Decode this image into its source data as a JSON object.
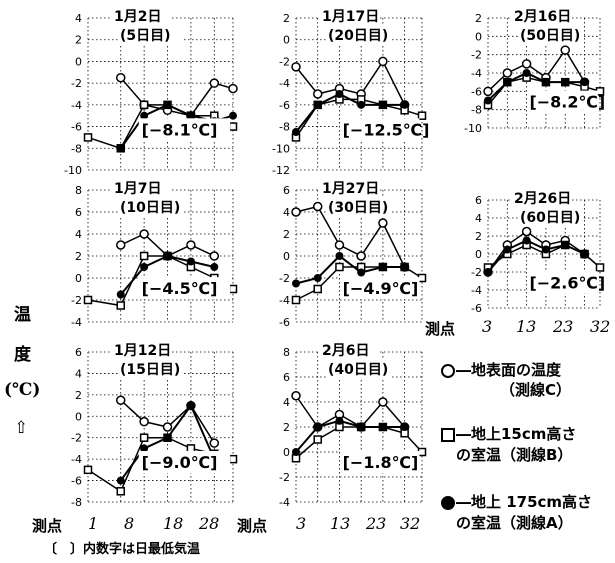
{
  "figure": {
    "y_axis_label_chars": [
      "温",
      "度",
      "(℃)",
      "⇧"
    ],
    "x_axis_label": "測点",
    "x_ticks": [
      "1",
      "8",
      "18",
      "28"
    ],
    "x_ticks_right": [
      "3",
      "13",
      "23",
      "32"
    ],
    "footnote": "〔　〕内数字は日最低気温"
  },
  "legend": {
    "items": [
      {
        "symbol": "open-circle",
        "line1": "―地表面の温度",
        "line2": "（測線C）"
      },
      {
        "symbol": "open-square",
        "line1": "―地上15cm高さ",
        "line2": "の室温（測線B）"
      },
      {
        "symbol": "filled-circle",
        "line1": "―地上 175cm高さ",
        "line2": "の室温（測線A）"
      }
    ]
  },
  "chart_data": [
    {
      "type": "line",
      "title": "1月2日",
      "subtitle": "(5日目)",
      "min_temp_label": "[−8.1℃]",
      "x": [
        1,
        8,
        13,
        18,
        23,
        28,
        32
      ],
      "ylim": [
        -10,
        4
      ],
      "yticks": [
        4,
        2,
        0,
        -2,
        -4,
        -6,
        -8,
        -10
      ],
      "series": [
        {
          "name": "地表面の温度（測線C）",
          "values": [
            null,
            -1.5,
            -4,
            -4.5,
            -5,
            -2,
            -2.5
          ]
        },
        {
          "name": "地上15cm高さの室温（測線B）",
          "values": [
            -7,
            -8,
            -4,
            -4,
            -5,
            -5,
            -6
          ]
        },
        {
          "name": "地上175cm高さの室温（測線A）",
          "values": [
            null,
            -8,
            -5,
            -4,
            -5,
            -5.5,
            -5
          ]
        }
      ]
    },
    {
      "type": "line",
      "title": "1月17日",
      "subtitle": "(20日目)",
      "min_temp_label": "[−12.5℃]",
      "x": [
        3,
        8,
        13,
        18,
        23,
        28,
        32
      ],
      "ylim": [
        -12,
        2
      ],
      "yticks": [
        2,
        0,
        -2,
        -4,
        -6,
        -8,
        -10,
        -12
      ],
      "series": [
        {
          "name": "地表面の温度（測線C）",
          "values": [
            -2.5,
            -5,
            -4.5,
            -5,
            -2,
            -6,
            null
          ]
        },
        {
          "name": "地上15cm高さの室温（測線B）",
          "values": [
            -9,
            -6,
            -5.5,
            -5.5,
            -6,
            -6.5,
            -7
          ]
        },
        {
          "name": "地上175cm高さの室温（測線A）",
          "values": [
            -8.5,
            -6,
            -5,
            -6,
            -6,
            -6,
            null
          ]
        }
      ]
    },
    {
      "type": "line",
      "title": "2月16日",
      "subtitle": "(50日目)",
      "min_temp_label": "[−8.2℃]",
      "x": [
        3,
        8,
        13,
        18,
        23,
        28,
        32
      ],
      "ylim": [
        -10,
        2
      ],
      "yticks": [
        2,
        0,
        -2,
        -4,
        -6,
        -8,
        -10
      ],
      "series": [
        {
          "name": "地表面の温度（測線C）",
          "values": [
            -6,
            -4,
            -3,
            -4.5,
            -1.5,
            -5,
            null
          ]
        },
        {
          "name": "地上15cm高さの室温（測線B）",
          "values": [
            -7.5,
            -5,
            -4.5,
            -5,
            -5,
            -5.5,
            -6
          ]
        },
        {
          "name": "地上175cm高さの室温（測線A）",
          "values": [
            -7,
            -5,
            -4,
            -5,
            -5,
            -5,
            null
          ]
        }
      ]
    },
    {
      "type": "line",
      "title": "1月7日",
      "subtitle": "(10日目)",
      "min_temp_label": "[−4.5℃]",
      "x": [
        1,
        8,
        13,
        18,
        23,
        28,
        32
      ],
      "ylim": [
        -4,
        8
      ],
      "yticks": [
        8,
        6,
        4,
        2,
        0,
        -2,
        -4
      ],
      "series": [
        {
          "name": "地表面の温度（測線C）",
          "values": [
            null,
            3,
            4,
            2,
            3,
            2,
            null
          ]
        },
        {
          "name": "地上15cm高さの室温（測線B）",
          "values": [
            -2,
            -2.5,
            2,
            2,
            1,
            0,
            -1
          ]
        },
        {
          "name": "地上175cm高さの室温（測線A）",
          "values": [
            null,
            -1.5,
            1,
            2,
            1.5,
            1,
            null
          ]
        }
      ]
    },
    {
      "type": "line",
      "title": "1月27日",
      "subtitle": "(30日目)",
      "min_temp_label": "[−4.9℃]",
      "x": [
        3,
        8,
        13,
        18,
        23,
        28,
        32
      ],
      "ylim": [
        -6,
        6
      ],
      "yticks": [
        6,
        4,
        2,
        0,
        -2,
        -4,
        -6
      ],
      "series": [
        {
          "name": "地表面の温度（測線C）",
          "values": [
            4,
            4.5,
            1,
            0,
            3,
            -1,
            null
          ]
        },
        {
          "name": "地上15cm高さの室温（測線B）",
          "values": [
            -4,
            -3,
            -1,
            -1,
            -1,
            -1,
            -2
          ]
        },
        {
          "name": "地上175cm高さの室温（測線A）",
          "values": [
            -2.5,
            -2,
            0,
            -1.5,
            -1,
            -1,
            null
          ]
        }
      ]
    },
    {
      "type": "line",
      "title": "2月26日",
      "subtitle": "(60日目)",
      "min_temp_label": "[−2.6℃]",
      "x": [
        3,
        8,
        13,
        18,
        23,
        28,
        32
      ],
      "ylim": [
        -6,
        6
      ],
      "yticks": [
        6,
        4,
        2,
        0,
        -2,
        -4,
        -6
      ],
      "series": [
        {
          "name": "地表面の温度（測線C）",
          "values": [
            -2,
            1,
            2.5,
            1,
            1.5,
            0,
            null
          ]
        },
        {
          "name": "地上15cm高さの室温（測線B）",
          "values": [
            -1.5,
            0,
            1,
            0,
            1,
            0,
            -1.5
          ]
        },
        {
          "name": "地上175cm高さの室温（測線A）",
          "values": [
            -2,
            0.5,
            1.5,
            0.5,
            1,
            0,
            null
          ]
        }
      ]
    },
    {
      "type": "line",
      "title": "1月12日",
      "subtitle": "(15日目)",
      "min_temp_label": "[−9.0℃]",
      "x": [
        1,
        8,
        13,
        18,
        23,
        28,
        32
      ],
      "ylim": [
        -8,
        6
      ],
      "yticks": [
        6,
        4,
        2,
        0,
        -2,
        -4,
        -6,
        -8
      ],
      "series": [
        {
          "name": "地表面の温度（測線C）",
          "values": [
            null,
            1.5,
            -0.5,
            -1,
            1,
            -2.5,
            null
          ]
        },
        {
          "name": "地上15cm高さの室温（測線B）",
          "values": [
            -5,
            -7,
            -2,
            -2,
            -3,
            -3.5,
            -4
          ]
        },
        {
          "name": "地上175cm高さの室温（測線A）",
          "values": [
            null,
            -6,
            -3,
            -2,
            1,
            -4,
            null
          ]
        }
      ]
    },
    {
      "type": "line",
      "title": "2月6日",
      "subtitle": "(40日目)",
      "min_temp_label": "[−1.8℃]",
      "x": [
        3,
        8,
        13,
        18,
        23,
        28,
        32
      ],
      "ylim": [
        -4,
        8
      ],
      "yticks": [
        8,
        6,
        4,
        2,
        0,
        -2,
        -4
      ],
      "series": [
        {
          "name": "地表面の温度（測線C）",
          "values": [
            4.5,
            2,
            3,
            2,
            4,
            2,
            null
          ]
        },
        {
          "name": "地上15cm高さの室温（測線B）",
          "values": [
            -0.5,
            1,
            2,
            2,
            2,
            1.5,
            0
          ]
        },
        {
          "name": "地上175cm高さの室温（測線A）",
          "values": [
            0,
            2,
            2.5,
            2,
            2,
            2,
            null
          ]
        }
      ]
    }
  ]
}
